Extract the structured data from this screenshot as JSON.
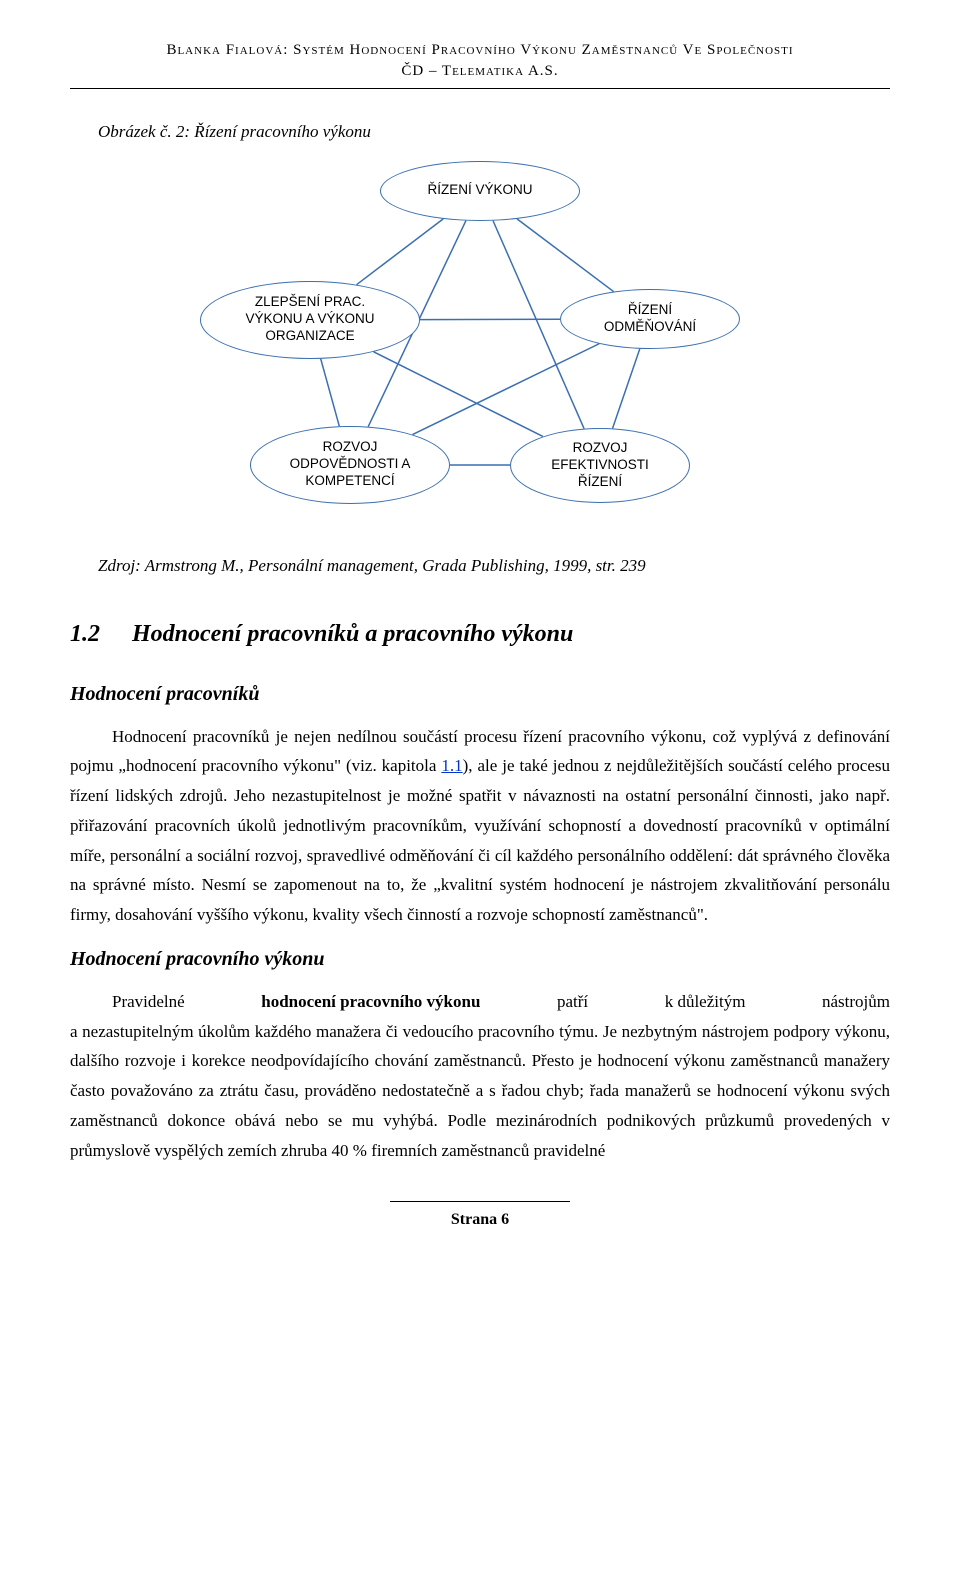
{
  "header": {
    "line1": "Blanka Fialová: Systém Hodnocení Pracovního Výkonu Zaměstnanců Ve Společnosti",
    "line2": "ČD – Telematika A.S."
  },
  "figure": {
    "caption": "Obrázek č. 2: Řízení pracovního výkonu",
    "nodes": {
      "top": "ŘÍZENÍ VÝKONU",
      "ml": "ZLEPŠENÍ PRAC.\nVÝKONU A VÝKONU\nORGANIZACE",
      "mr": "ŘÍZENÍ\nODMĚŇOVÁNÍ",
      "bl": "ROZVOJ\nODPOVĚDNOSTI A\nKOMPETENCÍ",
      "br": "ROZVOJ\nEFEKTIVNOSTI\nŘÍZENÍ"
    },
    "source_prefix": "Zdroj: Armstrong M., Personální management, Grada Publishing, 1999, str. 239",
    "edges": [
      [
        "top",
        "ml"
      ],
      [
        "top",
        "mr"
      ],
      [
        "top",
        "bl"
      ],
      [
        "top",
        "br"
      ],
      [
        "ml",
        "mr"
      ],
      [
        "ml",
        "bl"
      ],
      [
        "ml",
        "br"
      ],
      [
        "mr",
        "bl"
      ],
      [
        "mr",
        "br"
      ],
      [
        "bl",
        "br"
      ]
    ],
    "edge_color": "#3a6fb0",
    "node_border": "#3a6fb0",
    "background": "#ffffff"
  },
  "section": {
    "number": "1.2",
    "title": "Hodnocení pracovníků a pracovního výkonu"
  },
  "sub1": {
    "title": "Hodnocení pracovníků",
    "para_before_link": "Hodnocení pracovníků je nejen nedílnou součástí procesu řízení pracovního výkonu, což vyplývá z definování pojmu „hodnocení pracovního výkonu\" (viz. kapitola ",
    "link_text": "1.1",
    "para_after_link": "), ale je také jednou z nejdůležitějších součástí celého procesu řízení lidských zdrojů. Jeho nezastupitelnost je možné spatřit v návaznosti na ostatní personální činnosti, jako např. přiřazování pracovních úkolů jednotlivým pracovníkům, využívání schopností a dovedností pracovníků v optimální míře, personální a sociální rozvoj, spravedlivé odměňování či cíl každého personálního oddělení: dát správného člověka na správné místo. Nesmí se zapomenout na to, že „kvalitní systém hodnocení je nástrojem zkvalitňování personálu firmy, dosahování vyššího výkonu, kvality všech činností a rozvoje schopností zaměstnanců\"."
  },
  "sub2": {
    "title": "Hodnocení pracovního výkonu",
    "row1_a": "Pravidelné",
    "row1_b": "hodnocení  pracovního  výkonu",
    "row1_c": "patří",
    "row1_d": "k důležitým",
    "row1_e": "nástrojům",
    "rest": "a nezastupitelným úkolům každého manažera či vedoucího pracovního týmu. Je nezbytným nástrojem podpory výkonu, dalšího rozvoje i korekce neodpovídajícího chování zaměstnanců. Přesto je hodnocení výkonu zaměstnanců manažery často považováno za ztrátu času, prováděno nedostatečně a s řadou chyb; řada manažerů se hodnocení výkonu svých zaměstnanců dokonce obává nebo se mu vyhýbá. Podle mezinárodních podnikových průzkumů provedených v průmyslově vyspělých zemích zhruba 40 % firemních zaměstnanců pravidelné"
  },
  "footer": {
    "page": "Strana 6"
  }
}
